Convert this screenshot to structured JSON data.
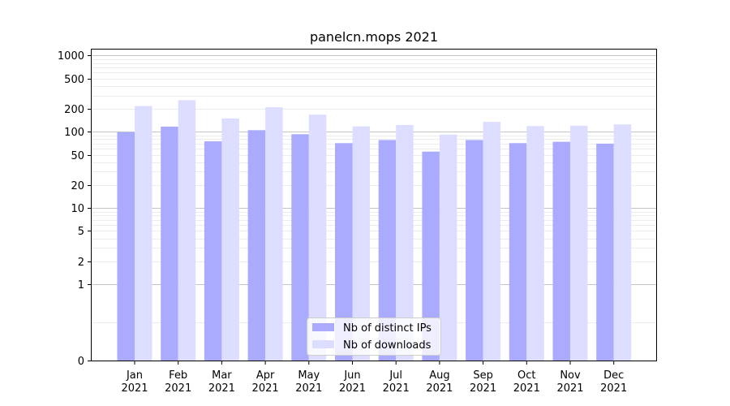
{
  "chart_data": {
    "type": "bar",
    "title": "panelcn.mops 2021",
    "xlabel": "",
    "ylabel": "",
    "y_scale": "symlog",
    "ylim": [
      0,
      1200
    ],
    "y_ticks": [
      0,
      1,
      2,
      5,
      10,
      20,
      50,
      100,
      200,
      500,
      1000
    ],
    "grid": "horizontal",
    "legend_position": "bottom-center",
    "categories": [
      [
        "Jan",
        "2021"
      ],
      [
        "Feb",
        "2021"
      ],
      [
        "Mar",
        "2021"
      ],
      [
        "Apr",
        "2021"
      ],
      [
        "May",
        "2021"
      ],
      [
        "Jun",
        "2021"
      ],
      [
        "Jul",
        "2021"
      ],
      [
        "Aug",
        "2021"
      ],
      [
        "Sep",
        "2021"
      ],
      [
        "Oct",
        "2021"
      ],
      [
        "Nov",
        "2021"
      ],
      [
        "Dec",
        "2021"
      ]
    ],
    "series": [
      {
        "name": "Nb of distinct IPs",
        "color": "#aaaaff",
        "values": [
          99,
          117,
          75,
          105,
          93,
          71,
          78,
          55,
          78,
          71,
          74,
          70
        ]
      },
      {
        "name": "Nb of downloads",
        "color": "#ddddff",
        "values": [
          218,
          260,
          150,
          210,
          168,
          118,
          123,
          92,
          135,
          119,
          120,
          125
        ]
      }
    ]
  }
}
